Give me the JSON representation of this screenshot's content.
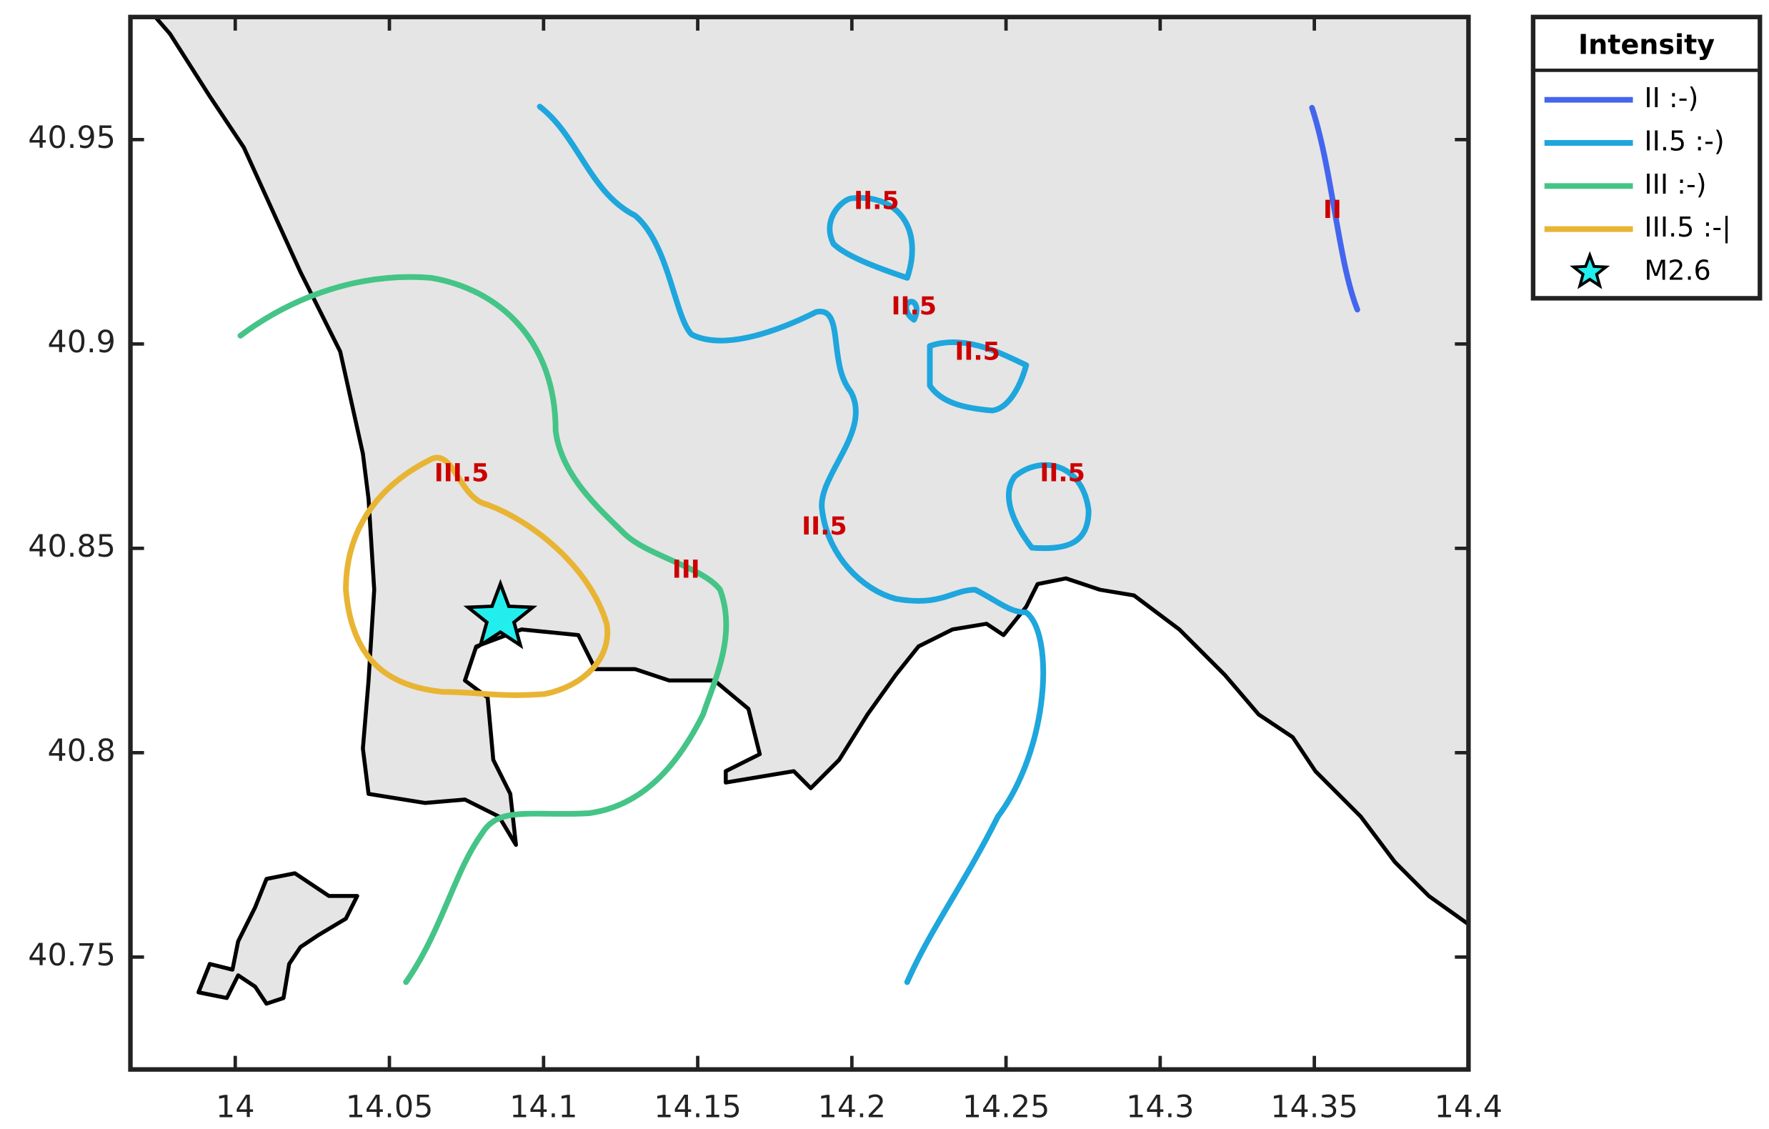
{
  "map": {
    "xlim": [
      13.966,
      14.4
    ],
    "ylim": [
      40.7225,
      40.98
    ],
    "xticks": [
      14,
      14.05,
      14.1,
      14.15,
      14.2,
      14.25,
      14.3,
      14.35,
      14.4
    ],
    "yticks": [
      40.75,
      40.8,
      40.85,
      40.9,
      40.95
    ],
    "contour_labels": [
      "II.5",
      "II.5",
      "II.5",
      "II.5",
      "II.5",
      "III.5",
      "III",
      "II"
    ],
    "legend": {
      "title": "Intensity",
      "entries": [
        {
          "label": "II :-)",
          "color": "#4466ee"
        },
        {
          "label": "II.5 :-)",
          "color": "#1ea6dd"
        },
        {
          "label": "III :-)",
          "color": "#44c486"
        },
        {
          "label": "III.5 :-|",
          "color": "#e8b433"
        },
        {
          "label": "M2.6",
          "color": "#22eeee"
        }
      ]
    },
    "epicenter": {
      "lon": 14.086,
      "lat": 40.833
    }
  }
}
